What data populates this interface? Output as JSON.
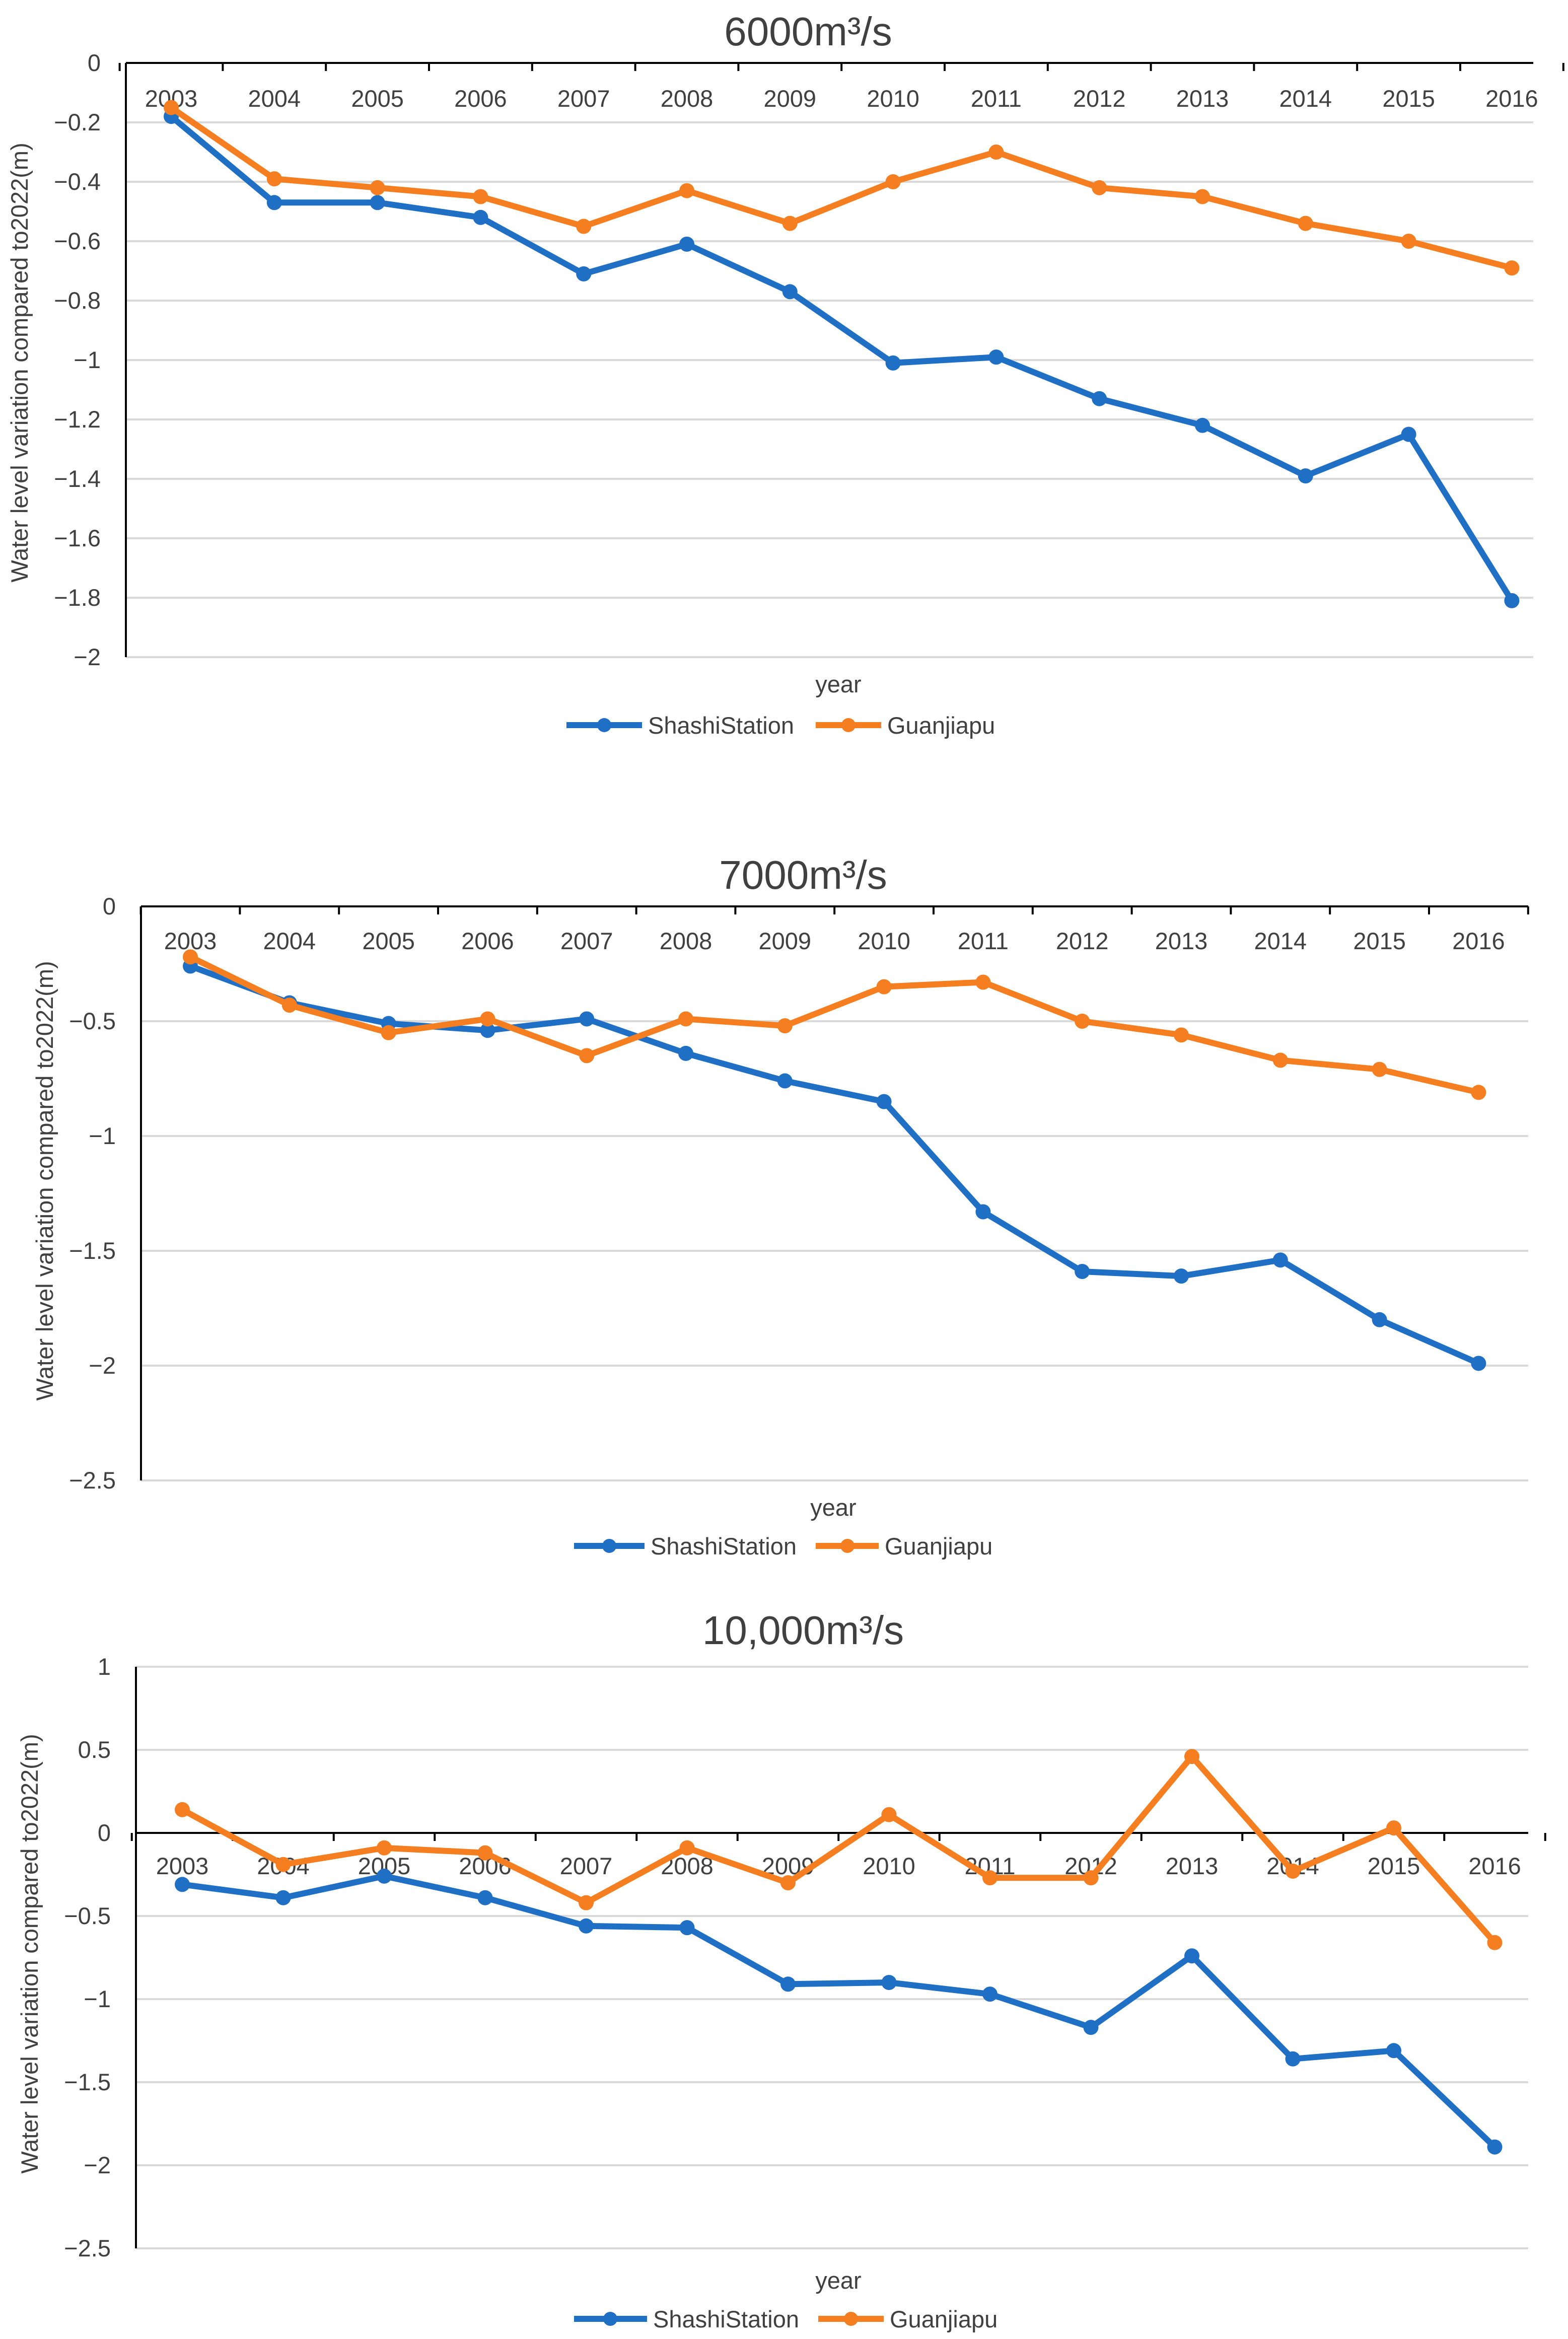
{
  "chart_data": [
    {
      "type": "line",
      "title": "6000m³/s",
      "xlabel": "year",
      "ylabel": "Water level variation compared to2022(m)",
      "ylim": [
        -2,
        0
      ],
      "yticks": [
        0,
        -0.2,
        -0.4,
        -0.6,
        -0.8,
        -1,
        -1.2,
        -1.4,
        -1.6,
        -1.8,
        -2
      ],
      "ytick_labels": [
        "0",
        "−0.2",
        "−0.4",
        "−0.6",
        "−0.8",
        "−1",
        "−1.2",
        "−1.4",
        "−1.6",
        "−1.8",
        "−2"
      ],
      "categories": [
        "2003",
        "2004",
        "2005",
        "2006",
        "2007",
        "2008",
        "2009",
        "2010",
        "2011",
        "2012",
        "2013",
        "2014",
        "2015",
        "2016"
      ],
      "grid": true,
      "legend": "bottom-center",
      "series": [
        {
          "name": "ShashiStation",
          "color": "#1f6fc5",
          "values": [
            -0.18,
            -0.47,
            -0.47,
            -0.52,
            -0.71,
            -0.61,
            -0.77,
            -1.01,
            -0.99,
            -1.13,
            -1.22,
            -1.39,
            -1.25,
            -1.81
          ]
        },
        {
          "name": "Guanjiapu",
          "color": "#f47e20",
          "values": [
            -0.15,
            -0.39,
            -0.42,
            -0.45,
            -0.55,
            -0.43,
            -0.54,
            -0.4,
            -0.3,
            -0.42,
            -0.45,
            -0.54,
            -0.6,
            -0.69
          ]
        }
      ]
    },
    {
      "type": "line",
      "title": "7000m³/s",
      "xlabel": "year",
      "ylabel": "Water level variation compared to2022(m)",
      "ylim": [
        -2.5,
        0
      ],
      "yticks": [
        0,
        -0.5,
        -1,
        -1.5,
        -2,
        -2.5
      ],
      "ytick_labels": [
        "0",
        "−0.5",
        "−1",
        "−1.5",
        "−2",
        "−2.5"
      ],
      "categories": [
        "2003",
        "2004",
        "2005",
        "2006",
        "2007",
        "2008",
        "2009",
        "2010",
        "2011",
        "2012",
        "2013",
        "2014",
        "2015",
        "2016"
      ],
      "grid": true,
      "legend": "bottom-center",
      "series": [
        {
          "name": "ShashiStation",
          "color": "#1f6fc5",
          "values": [
            -0.26,
            -0.42,
            -0.51,
            -0.54,
            -0.49,
            -0.64,
            -0.76,
            -0.85,
            -1.33,
            -1.59,
            -1.61,
            -1.54,
            -1.8,
            -1.99
          ]
        },
        {
          "name": "Guanjiapu",
          "color": "#f47e20",
          "values": [
            -0.22,
            -0.43,
            -0.55,
            -0.49,
            -0.65,
            -0.49,
            -0.52,
            -0.35,
            -0.33,
            -0.5,
            -0.56,
            -0.67,
            -0.71,
            -0.81
          ]
        }
      ]
    },
    {
      "type": "line",
      "title": "10,000m³/s",
      "xlabel": "year",
      "ylabel": "Water level variation compared to2022(m)",
      "ylim": [
        -2.5,
        1
      ],
      "yticks": [
        1,
        0.5,
        0,
        -0.5,
        -1,
        -1.5,
        -2,
        -2.5
      ],
      "ytick_labels": [
        "1",
        "0.5",
        "0",
        "−0.5",
        "−1",
        "−1.5",
        "−2",
        "−2.5"
      ],
      "categories": [
        "2003",
        "2004",
        "2005",
        "2006",
        "2007",
        "2008",
        "2009",
        "2010",
        "2011",
        "2012",
        "2013",
        "2014",
        "2015",
        "2016"
      ],
      "grid": true,
      "legend": "bottom-center",
      "series": [
        {
          "name": "ShashiStation",
          "color": "#1f6fc5",
          "values": [
            -0.31,
            -0.39,
            -0.26,
            -0.39,
            -0.56,
            -0.57,
            -0.91,
            -0.9,
            -0.97,
            -1.17,
            -0.74,
            -1.36,
            -1.31,
            -1.89
          ]
        },
        {
          "name": "Guanjiapu",
          "color": "#f47e20",
          "values": [
            0.14,
            -0.19,
            -0.09,
            -0.12,
            -0.42,
            -0.09,
            -0.3,
            0.11,
            -0.27,
            -0.27,
            0.46,
            -0.23,
            0.03,
            -0.66
          ]
        }
      ]
    }
  ]
}
